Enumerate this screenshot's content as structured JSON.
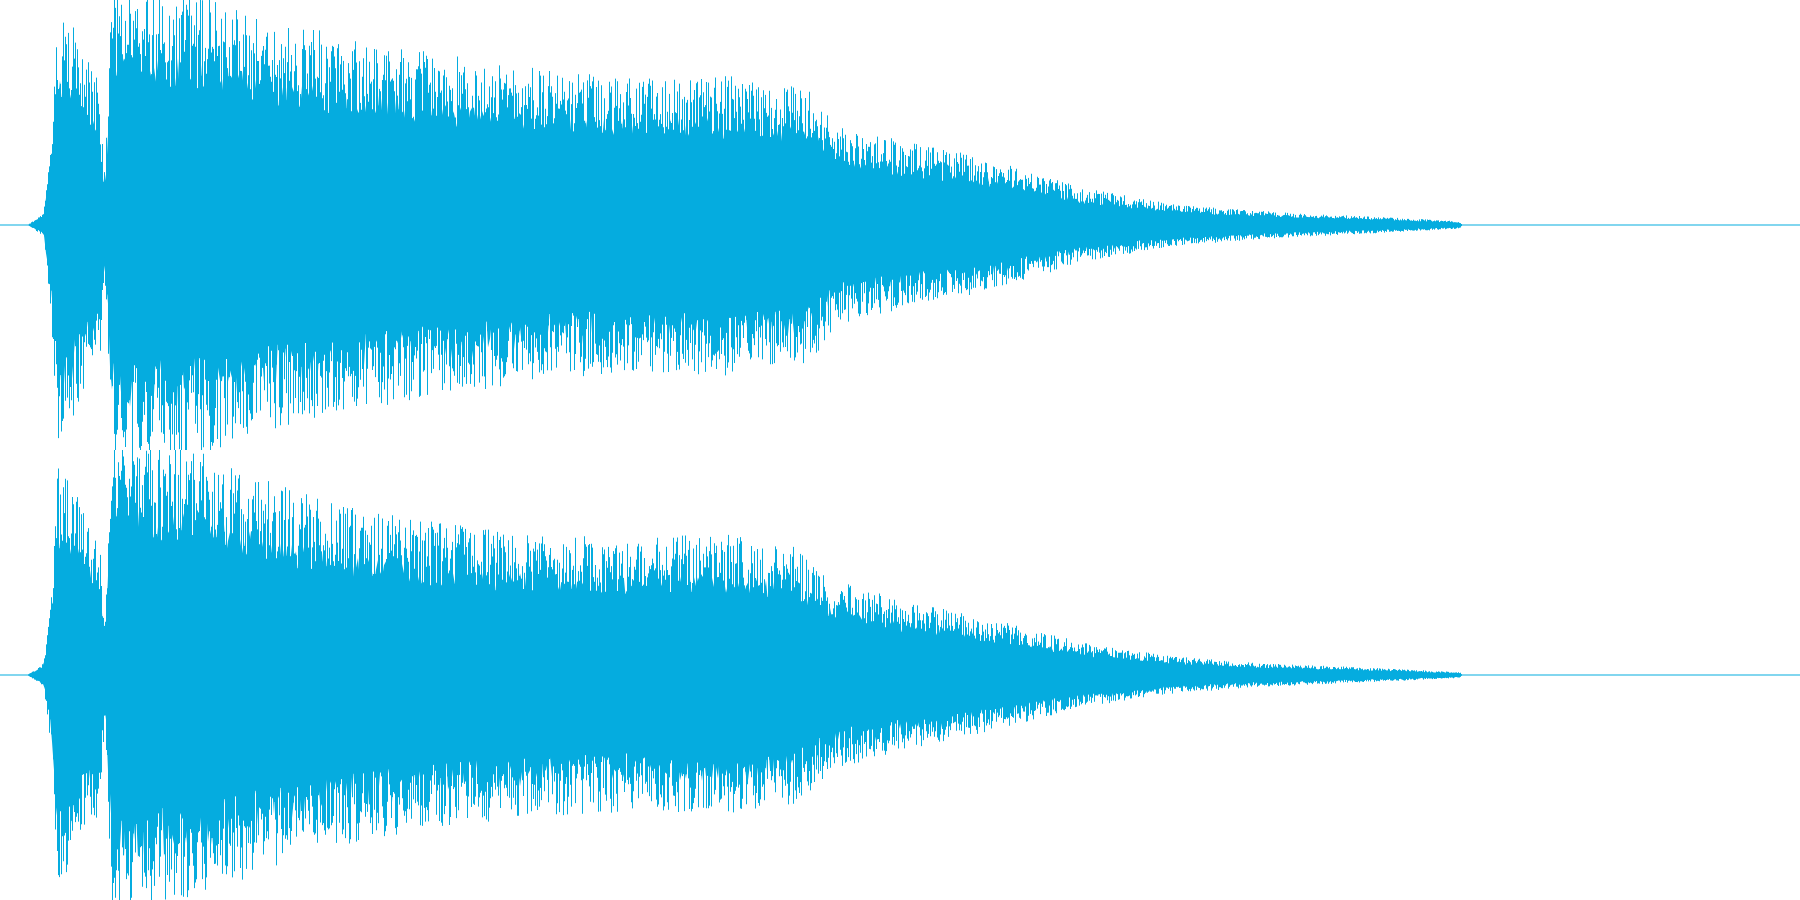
{
  "waveform": {
    "color": "#05acdf",
    "background": "#ffffff",
    "channels": [
      {
        "name": "",
        "envelope": [
          {
            "t": 0.0,
            "amp": 0.0
          },
          {
            "t": 0.015,
            "amp": 0.0
          },
          {
            "t": 0.024,
            "amp": 0.05
          },
          {
            "t": 0.028,
            "amp": 0.35
          },
          {
            "t": 0.032,
            "amp": 0.95
          },
          {
            "t": 0.04,
            "amp": 0.85
          },
          {
            "t": 0.048,
            "amp": 0.7
          },
          {
            "t": 0.055,
            "amp": 0.62
          },
          {
            "t": 0.058,
            "amp": 0.2
          },
          {
            "t": 0.062,
            "amp": 1.0
          },
          {
            "t": 0.1,
            "amp": 1.0
          },
          {
            "t": 0.15,
            "amp": 0.88
          },
          {
            "t": 0.2,
            "amp": 0.78
          },
          {
            "t": 0.25,
            "amp": 0.72
          },
          {
            "t": 0.3,
            "amp": 0.66
          },
          {
            "t": 0.35,
            "amp": 0.62
          },
          {
            "t": 0.4,
            "amp": 0.64
          },
          {
            "t": 0.45,
            "amp": 0.58
          },
          {
            "t": 0.465,
            "amp": 0.42
          },
          {
            "t": 0.5,
            "amp": 0.36
          },
          {
            "t": 0.55,
            "amp": 0.28
          },
          {
            "t": 0.6,
            "amp": 0.16
          },
          {
            "t": 0.65,
            "amp": 0.09
          },
          {
            "t": 0.7,
            "amp": 0.06
          },
          {
            "t": 0.75,
            "amp": 0.04
          },
          {
            "t": 0.79,
            "amp": 0.025
          },
          {
            "t": 0.811,
            "amp": 0.015
          },
          {
            "t": 0.812,
            "amp": 0.0
          },
          {
            "t": 1.0,
            "amp": 0.0
          }
        ],
        "seed": 7
      },
      {
        "name": "",
        "envelope": [
          {
            "t": 0.0,
            "amp": 0.0
          },
          {
            "t": 0.015,
            "amp": 0.0
          },
          {
            "t": 0.024,
            "amp": 0.05
          },
          {
            "t": 0.028,
            "amp": 0.3
          },
          {
            "t": 0.032,
            "amp": 0.9
          },
          {
            "t": 0.04,
            "amp": 0.8
          },
          {
            "t": 0.048,
            "amp": 0.68
          },
          {
            "t": 0.055,
            "amp": 0.6
          },
          {
            "t": 0.058,
            "amp": 0.2
          },
          {
            "t": 0.062,
            "amp": 1.0
          },
          {
            "t": 0.1,
            "amp": 0.98
          },
          {
            "t": 0.15,
            "amp": 0.82
          },
          {
            "t": 0.2,
            "amp": 0.7
          },
          {
            "t": 0.25,
            "amp": 0.64
          },
          {
            "t": 0.3,
            "amp": 0.6
          },
          {
            "t": 0.35,
            "amp": 0.58
          },
          {
            "t": 0.4,
            "amp": 0.6
          },
          {
            "t": 0.44,
            "amp": 0.55
          },
          {
            "t": 0.465,
            "amp": 0.4
          },
          {
            "t": 0.5,
            "amp": 0.32
          },
          {
            "t": 0.55,
            "amp": 0.24
          },
          {
            "t": 0.6,
            "amp": 0.14
          },
          {
            "t": 0.65,
            "amp": 0.08
          },
          {
            "t": 0.7,
            "amp": 0.05
          },
          {
            "t": 0.75,
            "amp": 0.035
          },
          {
            "t": 0.79,
            "amp": 0.02
          },
          {
            "t": 0.811,
            "amp": 0.012
          },
          {
            "t": 0.812,
            "amp": 0.0
          },
          {
            "t": 1.0,
            "amp": 0.0
          }
        ],
        "seed": 13
      }
    ]
  }
}
